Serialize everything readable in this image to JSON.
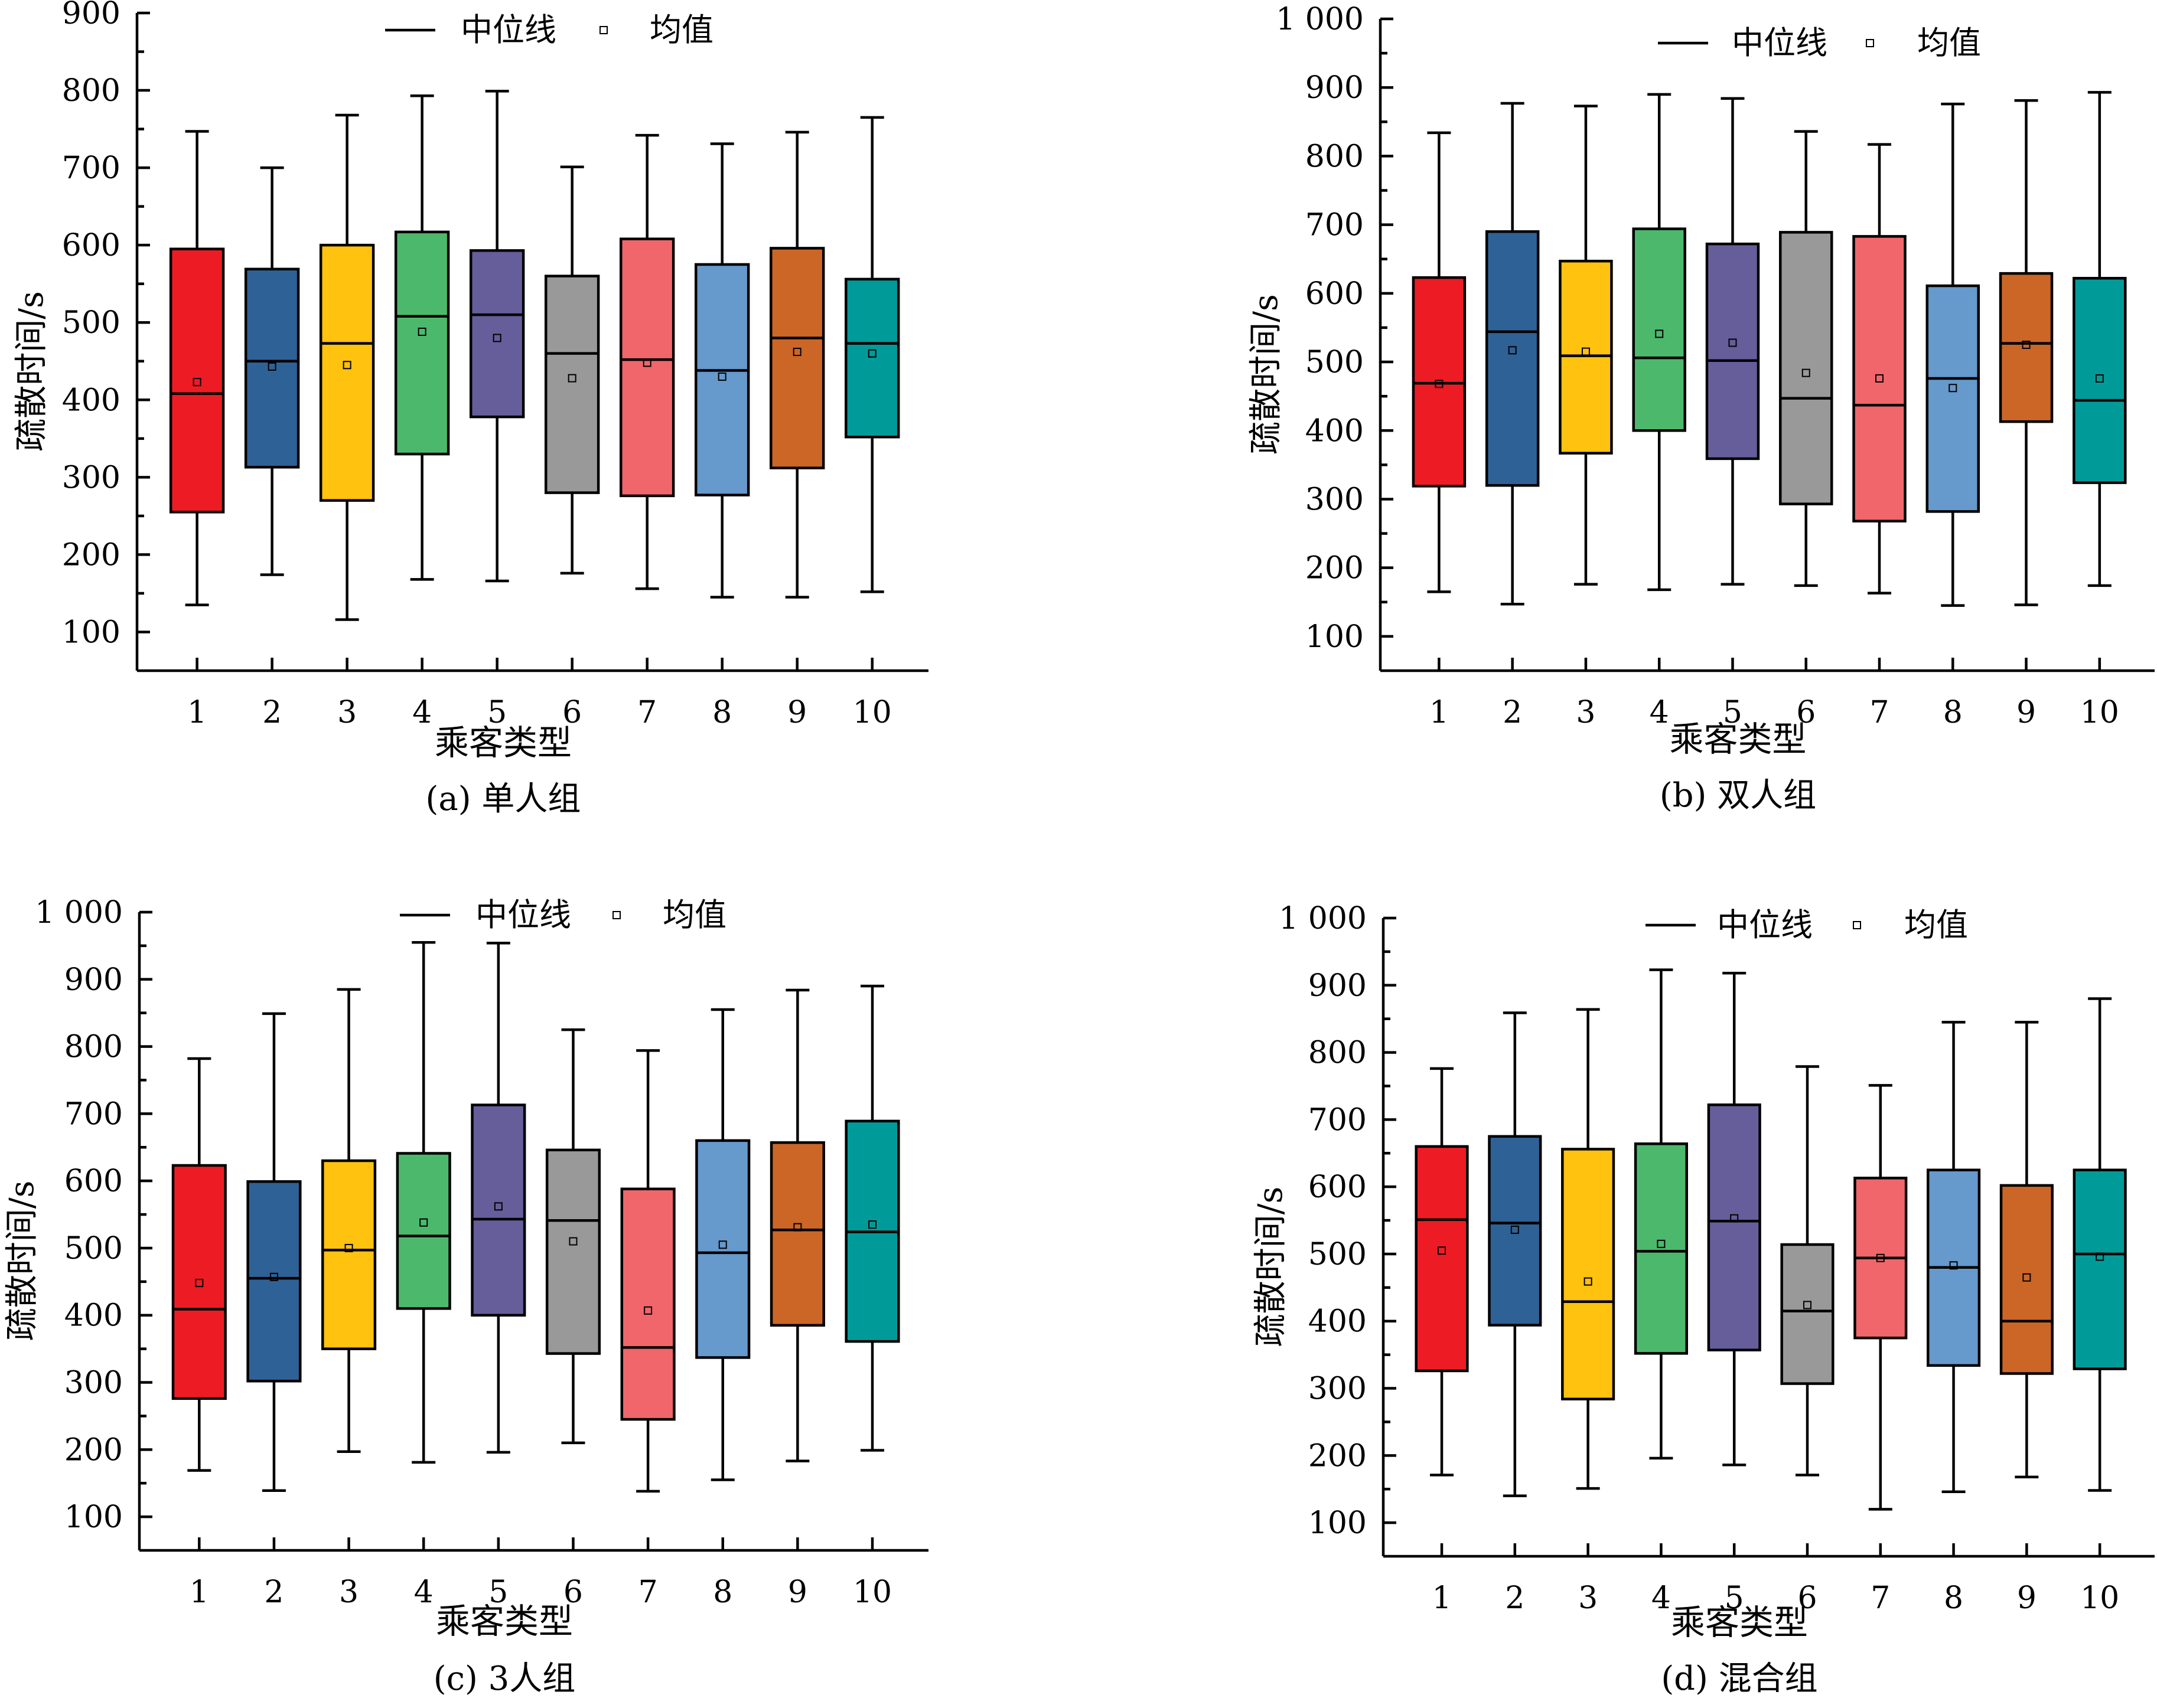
{
  "palette": [
    "#ed1c24",
    "#2e6196",
    "#ffc20e",
    "#4cb86c",
    "#665e9a",
    "#999999",
    "#f0666b",
    "#6699cc",
    "#cc6626",
    "#009b99"
  ],
  "legend": {
    "median_label": "中位线",
    "mean_label": "均值"
  },
  "chart_data": [
    {
      "type": "box",
      "caption": "(a) 单人组",
      "xlabel": "乘客类型",
      "ylabel": "疏散时间/s",
      "ylim": [
        50,
        900
      ],
      "yticks": [
        100,
        200,
        300,
        400,
        500,
        600,
        700,
        800,
        900
      ],
      "ytick_labels": [
        "100",
        "200",
        "300",
        "400",
        "500",
        "600",
        "700",
        "800",
        "900"
      ],
      "categories": [
        "1",
        "2",
        "3",
        "4",
        "5",
        "6",
        "7",
        "8",
        "9",
        "10"
      ],
      "boxes": [
        {
          "min": 135,
          "q1": 255,
          "median": 408,
          "q3": 595,
          "max": 747,
          "mean": 423
        },
        {
          "min": 174,
          "q1": 313,
          "median": 450,
          "q3": 569,
          "max": 700,
          "mean": 443
        },
        {
          "min": 116,
          "q1": 270,
          "median": 473,
          "q3": 600,
          "max": 768,
          "mean": 445
        },
        {
          "min": 168,
          "q1": 330,
          "median": 508,
          "q3": 617,
          "max": 793,
          "mean": 488
        },
        {
          "min": 166,
          "q1": 378,
          "median": 510,
          "q3": 593,
          "max": 799,
          "mean": 480
        },
        {
          "min": 176,
          "q1": 280,
          "median": 460,
          "q3": 560,
          "max": 701,
          "mean": 428
        },
        {
          "min": 156,
          "q1": 276,
          "median": 452,
          "q3": 608,
          "max": 742,
          "mean": 448
        },
        {
          "min": 145,
          "q1": 277,
          "median": 438,
          "q3": 575,
          "max": 731,
          "mean": 430
        },
        {
          "min": 145,
          "q1": 312,
          "median": 480,
          "q3": 596,
          "max": 746,
          "mean": 462
        },
        {
          "min": 152,
          "q1": 352,
          "median": 473,
          "q3": 556,
          "max": 765,
          "mean": 460
        }
      ]
    },
    {
      "type": "box",
      "caption": "(b) 双人组",
      "xlabel": "乘客类型",
      "ylabel": "疏散时间/s",
      "ylim": [
        50,
        1000
      ],
      "yticks": [
        100,
        200,
        300,
        400,
        500,
        600,
        700,
        800,
        900,
        1000
      ],
      "ytick_labels": [
        "100",
        "200",
        "300",
        "400",
        "500",
        "600",
        "700",
        "800",
        "900",
        "1 000"
      ],
      "categories": [
        "1",
        "2",
        "3",
        "4",
        "5",
        "6",
        "7",
        "8",
        "9",
        "10"
      ],
      "boxes": [
        {
          "min": 165,
          "q1": 319,
          "median": 469,
          "q3": 623,
          "max": 834,
          "mean": 468
        },
        {
          "min": 147,
          "q1": 320,
          "median": 544,
          "q3": 690,
          "max": 877,
          "mean": 517
        },
        {
          "min": 176,
          "q1": 367,
          "median": 509,
          "q3": 647,
          "max": 873,
          "mean": 515
        },
        {
          "min": 168,
          "q1": 400,
          "median": 506,
          "q3": 694,
          "max": 890,
          "mean": 541
        },
        {
          "min": 176,
          "q1": 359,
          "median": 502,
          "q3": 672,
          "max": 884,
          "mean": 528
        },
        {
          "min": 174,
          "q1": 293,
          "median": 447,
          "q3": 689,
          "max": 836,
          "mean": 484
        },
        {
          "min": 163,
          "q1": 268,
          "median": 437,
          "q3": 683,
          "max": 817,
          "mean": 476
        },
        {
          "min": 145,
          "q1": 282,
          "median": 476,
          "q3": 611,
          "max": 876,
          "mean": 462
        },
        {
          "min": 146,
          "q1": 413,
          "median": 527,
          "q3": 629,
          "max": 881,
          "mean": 525
        },
        {
          "min": 174,
          "q1": 324,
          "median": 444,
          "q3": 622,
          "max": 893,
          "mean": 476
        }
      ]
    },
    {
      "type": "box",
      "caption": "(c) 3人组",
      "xlabel": "乘客类型",
      "ylabel": "疏散时间/s",
      "ylim": [
        50,
        1000
      ],
      "yticks": [
        100,
        200,
        300,
        400,
        500,
        600,
        700,
        800,
        900,
        1000
      ],
      "ytick_labels": [
        "100",
        "200",
        "300",
        "400",
        "500",
        "600",
        "700",
        "800",
        "900",
        "1 000"
      ],
      "categories": [
        "1",
        "2",
        "3",
        "4",
        "5",
        "6",
        "7",
        "8",
        "9",
        "10"
      ],
      "boxes": [
        {
          "min": 169,
          "q1": 276,
          "median": 409,
          "q3": 623,
          "max": 782,
          "mean": 448
        },
        {
          "min": 139,
          "q1": 302,
          "median": 455,
          "q3": 599,
          "max": 849,
          "mean": 457
        },
        {
          "min": 197,
          "q1": 350,
          "median": 497,
          "q3": 630,
          "max": 885,
          "mean": 500
        },
        {
          "min": 181,
          "q1": 410,
          "median": 518,
          "q3": 641,
          "max": 955,
          "mean": 538
        },
        {
          "min": 196,
          "q1": 400,
          "median": 543,
          "q3": 713,
          "max": 954,
          "mean": 562
        },
        {
          "min": 210,
          "q1": 343,
          "median": 541,
          "q3": 646,
          "max": 825,
          "mean": 510
        },
        {
          "min": 138,
          "q1": 245,
          "median": 352,
          "q3": 588,
          "max": 794,
          "mean": 407
        },
        {
          "min": 155,
          "q1": 337,
          "median": 493,
          "q3": 660,
          "max": 855,
          "mean": 505
        },
        {
          "min": 183,
          "q1": 385,
          "median": 527,
          "q3": 657,
          "max": 884,
          "mean": 531
        },
        {
          "min": 199,
          "q1": 361,
          "median": 524,
          "q3": 689,
          "max": 890,
          "mean": 535
        }
      ]
    },
    {
      "type": "box",
      "caption": "(d) 混合组",
      "xlabel": "乘客类型",
      "ylabel": "疏散时间/s",
      "ylim": [
        50,
        1000
      ],
      "yticks": [
        100,
        200,
        300,
        400,
        500,
        600,
        700,
        800,
        900,
        1000
      ],
      "ytick_labels": [
        "100",
        "200",
        "300",
        "400",
        "500",
        "600",
        "700",
        "800",
        "900",
        "1 000"
      ],
      "categories": [
        "1",
        "2",
        "3",
        "4",
        "5",
        "6",
        "7",
        "8",
        "9",
        "10"
      ],
      "boxes": [
        {
          "min": 171,
          "q1": 326,
          "median": 551,
          "q3": 660,
          "max": 776,
          "mean": 505
        },
        {
          "min": 140,
          "q1": 394,
          "median": 546,
          "q3": 675,
          "max": 859,
          "mean": 536
        },
        {
          "min": 151,
          "q1": 284,
          "median": 429,
          "q3": 656,
          "max": 864,
          "mean": 459
        },
        {
          "min": 196,
          "q1": 352,
          "median": 504,
          "q3": 664,
          "max": 923,
          "mean": 515
        },
        {
          "min": 186,
          "q1": 357,
          "median": 549,
          "q3": 722,
          "max": 918,
          "mean": 553
        },
        {
          "min": 171,
          "q1": 307,
          "median": 415,
          "q3": 514,
          "max": 779,
          "mean": 424
        },
        {
          "min": 120,
          "q1": 375,
          "median": 494,
          "q3": 613,
          "max": 751,
          "mean": 494
        },
        {
          "min": 146,
          "q1": 334,
          "median": 480,
          "q3": 625,
          "max": 845,
          "mean": 483
        },
        {
          "min": 168,
          "q1": 322,
          "median": 400,
          "q3": 602,
          "max": 845,
          "mean": 465
        },
        {
          "min": 148,
          "q1": 329,
          "median": 500,
          "q3": 625,
          "max": 880,
          "mean": 496
        }
      ]
    }
  ]
}
